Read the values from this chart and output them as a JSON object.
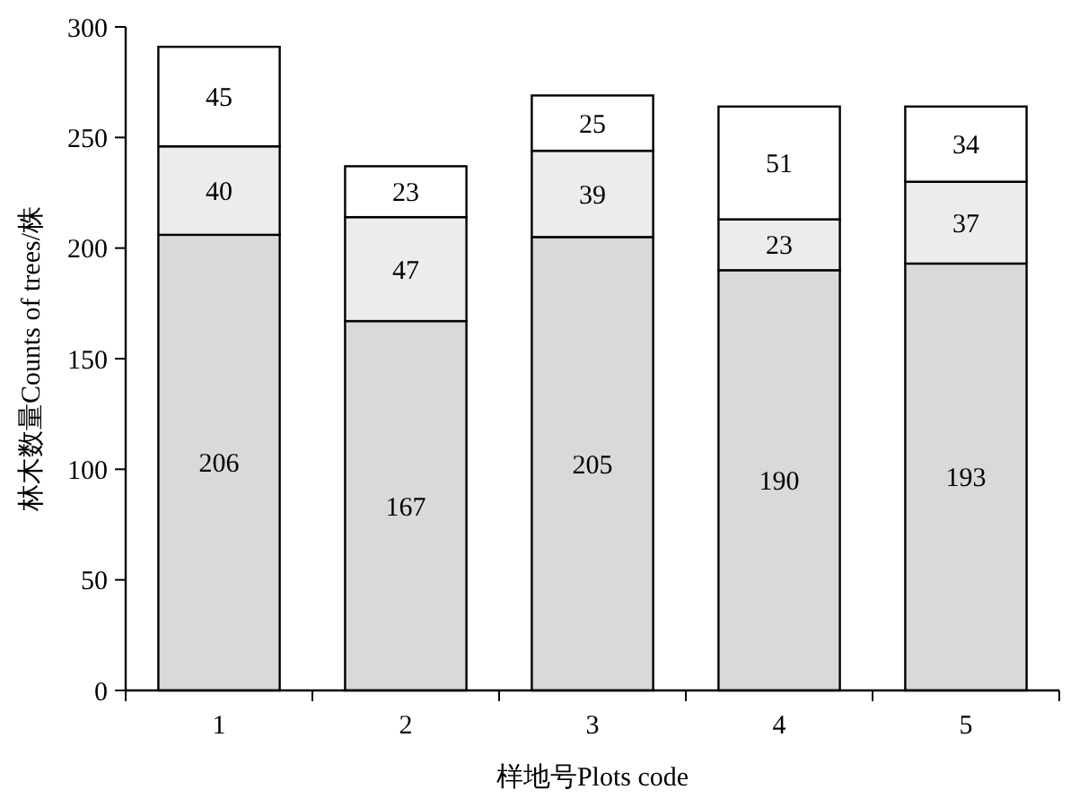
{
  "chart_data": {
    "type": "bar",
    "stacked": true,
    "xlabel": "样地号Plots code",
    "ylabel": "林木数量Counts of trees/株",
    "categories": [
      "1",
      "2",
      "3",
      "4",
      "5"
    ],
    "series": [
      {
        "color": "#d9d9d9",
        "values": [
          206,
          167,
          205,
          190,
          193
        ]
      },
      {
        "color": "#ececec",
        "values": [
          40,
          47,
          39,
          23,
          37
        ]
      },
      {
        "color": "#ffffff",
        "values": [
          45,
          23,
          25,
          51,
          34
        ]
      }
    ],
    "ylim": [
      0,
      300
    ],
    "yticks": [
      0,
      50,
      100,
      150,
      200,
      250,
      300
    ],
    "data_labels": true,
    "grid": false
  }
}
